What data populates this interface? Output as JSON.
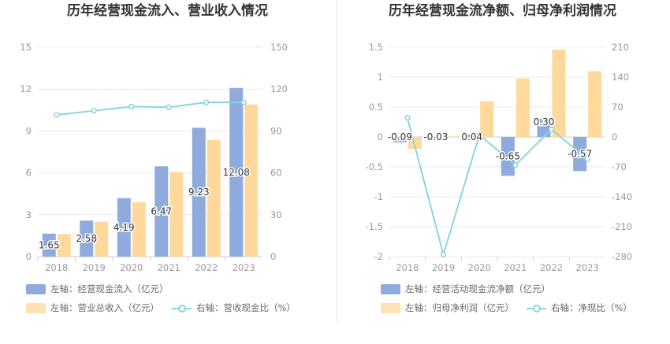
{
  "colors": {
    "bar_left": "#8faadc",
    "bar_right": "#ffd99b",
    "line": "#8bd6dd",
    "grid": "#e8ebf0",
    "axis_text": "#999999",
    "label_text": "#333333"
  },
  "chart_data": [
    {
      "type": "bar",
      "title": "历年经营现金流入、营业收入情况",
      "categories": [
        "2018",
        "2019",
        "2020",
        "2021",
        "2022",
        "2023"
      ],
      "y_left": {
        "ylim": [
          0,
          15
        ],
        "ticks": [
          "0",
          "3",
          "6",
          "9",
          "12",
          "15"
        ]
      },
      "y_right": {
        "ylim": [
          0,
          150
        ],
        "ticks": [
          "0",
          "30",
          "60",
          "90",
          "120",
          "150"
        ]
      },
      "series": [
        {
          "name": "左轴：经营现金流入（亿元）",
          "kind": "bar",
          "axis": "left",
          "color": "#8faadc",
          "values": [
            1.65,
            2.58,
            4.19,
            6.47,
            9.23,
            12.08
          ],
          "labels": [
            "1.65",
            "2.58",
            "4.19",
            "6.47",
            "9.23",
            "12.08"
          ]
        },
        {
          "name": "左轴：营业总收入（亿元）",
          "kind": "bar",
          "axis": "left",
          "color": "#ffd99b",
          "values": [
            1.62,
            2.5,
            3.9,
            6.05,
            8.35,
            10.9
          ]
        },
        {
          "name": "右轴：营收现金比（%）",
          "kind": "line",
          "axis": "right",
          "color": "#8bd6dd",
          "values": [
            101.5,
            104.5,
            107.5,
            107,
            110.5,
            110.5
          ]
        }
      ]
    },
    {
      "type": "bar",
      "title": "历年经营现金流净额、归母净利润情况",
      "categories": [
        "2018",
        "2019",
        "2020",
        "2021",
        "2022",
        "2023"
      ],
      "y_left": {
        "ylim": [
          -2,
          1.5
        ],
        "ticks": [
          "-2",
          "-1.5",
          "-1",
          "-0.5",
          "0",
          "0.5",
          "1",
          "1.5"
        ]
      },
      "y_right": {
        "ylim": [
          -280,
          210
        ],
        "ticks": [
          "-280",
          "-210",
          "-140",
          "-70",
          "0",
          "70",
          "140",
          "210"
        ]
      },
      "series": [
        {
          "name": "左轴：经营活动现金流净额（亿元）",
          "kind": "bar",
          "axis": "left",
          "color": "#8faadc",
          "values": [
            -0.09,
            -0.03,
            0.04,
            -0.65,
            0.3,
            -0.57
          ],
          "labels": [
            "-0.09",
            "-0.03",
            "0.04",
            "-0.65",
            "0.30",
            "-0.57"
          ]
        },
        {
          "name": "左轴：归母净利润（亿元）",
          "kind": "bar",
          "axis": "left",
          "color": "#ffd99b",
          "values": [
            -0.2,
            0.01,
            0.6,
            0.98,
            1.46,
            1.1
          ]
        },
        {
          "name": "右轴：净现比（%）",
          "kind": "line",
          "axis": "right",
          "color": "#8bd6dd",
          "values": [
            45,
            -275,
            5,
            -66,
            18,
            -52
          ]
        }
      ]
    }
  ]
}
